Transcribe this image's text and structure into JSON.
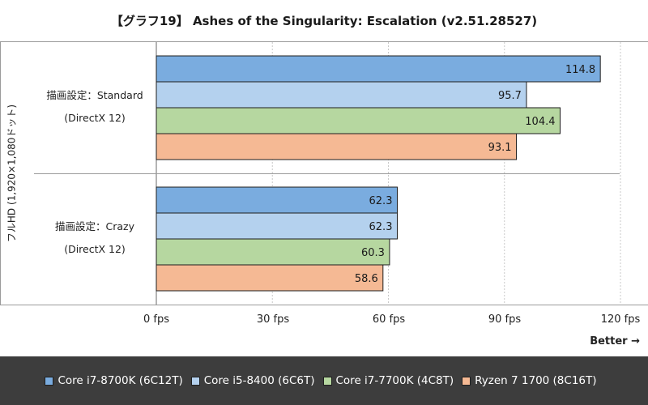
{
  "chart_data": {
    "type": "bar",
    "orientation": "horizontal",
    "title": "【グラフ19】 Ashes of the Singularity: Escalation (v2.51.28527)",
    "ylabel": "フルHD (1,920×1,080ドット)",
    "xlim": [
      0,
      120
    ],
    "x_ticks": [
      "0 fps",
      "30 fps",
      "60 fps",
      "90 fps",
      "120 fps"
    ],
    "x_tick_values": [
      0,
      30,
      60,
      90,
      120
    ],
    "grid": true,
    "legend_position": "bottom",
    "categories": [
      {
        "line1": "描画設定：Standard",
        "line2": "(DirectX 12)"
      },
      {
        "line1": "描画設定：Crazy",
        "line2": "(DirectX 12)"
      }
    ],
    "series": [
      {
        "name": "Core i7-8700K (6C12T)",
        "color": "#7aacdf",
        "values": [
          114.8,
          62.3
        ],
        "labels": [
          "114.8",
          "62.3"
        ]
      },
      {
        "name": "Core i5-8400 (6C6T)",
        "color": "#b4d1ee",
        "values": [
          95.7,
          62.3
        ],
        "labels": [
          "95.7",
          "62.3"
        ]
      },
      {
        "name": "Core i7-7700K (4C8T)",
        "color": "#b6d7a0",
        "values": [
          104.4,
          60.3
        ],
        "labels": [
          "104.4",
          "60.3"
        ]
      },
      {
        "name": "Ryzen 7 1700 (8C16T)",
        "color": "#f5b994",
        "values": [
          93.1,
          58.6
        ],
        "labels": [
          "93.1",
          "58.6"
        ]
      }
    ],
    "annotation": "Better →"
  }
}
